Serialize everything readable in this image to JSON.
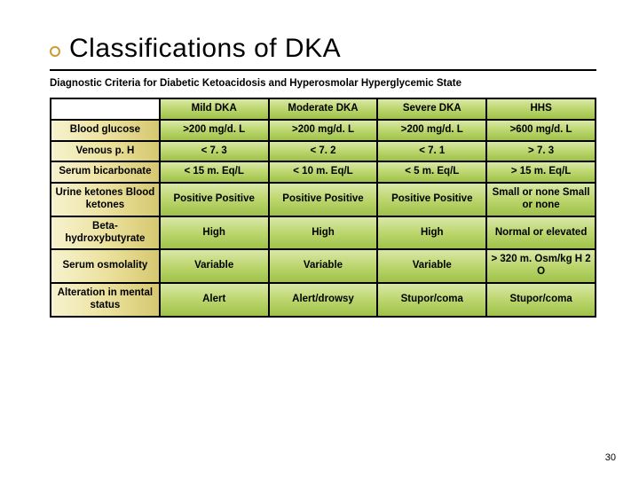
{
  "slide": {
    "title": "Classifications of DKA",
    "subtitle": "Diagnostic Criteria for Diabetic Ketoacidosis and Hyperosmolar Hyperglycemic State",
    "page_number": "30"
  },
  "table": {
    "columns": [
      "Mild DKA",
      "Moderate DKA",
      "Severe DKA",
      "HHS"
    ],
    "rows": [
      {
        "label": "Blood glucose",
        "cells": [
          ">200 mg/d. L",
          ">200 mg/d. L",
          ">200 mg/d. L",
          ">600 mg/d. L"
        ]
      },
      {
        "label": "Venous p. H",
        "cells": [
          "< 7. 3",
          "< 7. 2",
          "< 7. 1",
          "> 7. 3"
        ]
      },
      {
        "label": "Serum bicarbonate",
        "cells": [
          "< 15 m. Eq/L",
          "< 10 m. Eq/L",
          "< 5 m. Eq/L",
          "> 15 m. Eq/L"
        ]
      },
      {
        "label": "Urine ketones Blood ketones",
        "cells": [
          "Positive Positive",
          "Positive Positive",
          "Positive Positive",
          "Small or none Small or none"
        ]
      },
      {
        "label": "Beta-hydroxybutyrate",
        "cells": [
          "High",
          "High",
          "High",
          "Normal or elevated"
        ]
      },
      {
        "label": "Serum osmolality",
        "cells": [
          "Variable",
          "Variable",
          "Variable",
          "> 320 m. Osm/kg H 2 O"
        ]
      },
      {
        "label": "Alteration in mental status",
        "cells": [
          "Alert",
          "Alert/drowsy",
          "Stupor/coma",
          "Stupor/coma"
        ]
      }
    ]
  },
  "colors": {
    "bullet_border": "#cc9933",
    "row_header_gradient": [
      "#f7f2cf",
      "#ece29f",
      "#d6c870"
    ],
    "col_gradient": [
      "#d9e8a8",
      "#bcd66e",
      "#9fc24a"
    ],
    "border": "#000000",
    "background": "#ffffff"
  }
}
